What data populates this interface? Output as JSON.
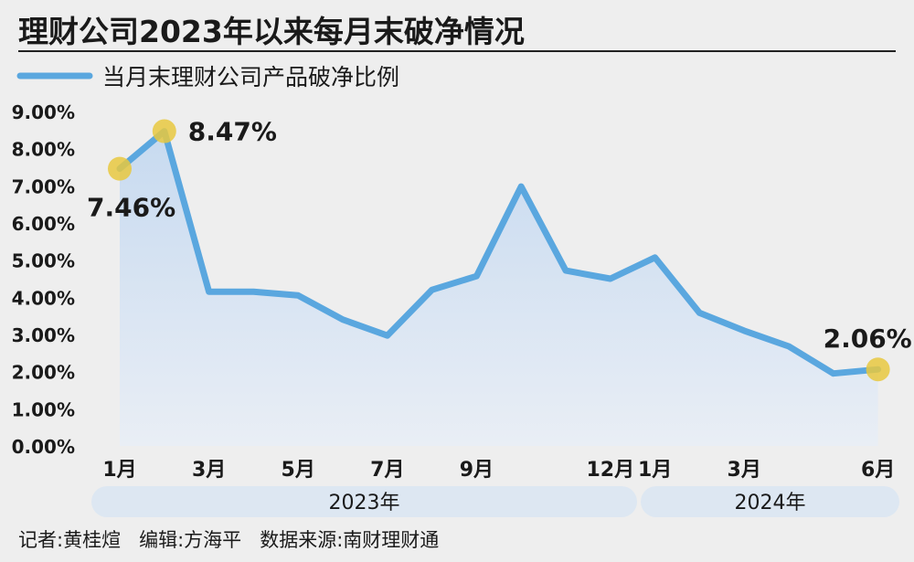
{
  "chart_data": {
    "type": "area",
    "title": "理财公司2023年以来每月末破净情况",
    "legend_label": "当月末理财公司产品破净比例",
    "series": [
      {
        "name": "当月末理财公司产品破净比例",
        "values": [
          7.46,
          8.47,
          4.15,
          4.15,
          4.05,
          3.4,
          2.97,
          4.2,
          4.57,
          6.98,
          4.72,
          4.5,
          5.07,
          3.58,
          3.1,
          2.68,
          1.95,
          2.06
        ],
        "color": "#5aa7df"
      }
    ],
    "months": [
      "2023-01",
      "2023-02",
      "2023-03",
      "2023-04",
      "2023-05",
      "2023-06",
      "2023-07",
      "2023-08",
      "2023-09",
      "2023-10",
      "2023-11",
      "2023-12",
      "2024-01",
      "2024-02",
      "2024-03",
      "2024-04",
      "2024-05",
      "2024-06"
    ],
    "x_tick_labels": [
      {
        "index": 0,
        "label": "1月"
      },
      {
        "index": 2,
        "label": "3月"
      },
      {
        "index": 4,
        "label": "5月"
      },
      {
        "index": 6,
        "label": "7月"
      },
      {
        "index": 8,
        "label": "9月"
      },
      {
        "index": 11,
        "label": "12月"
      },
      {
        "index": 12,
        "label": "1月"
      },
      {
        "index": 14,
        "label": "3月"
      },
      {
        "index": 17,
        "label": "6月"
      }
    ],
    "year_groups": [
      {
        "label": "2023年",
        "start_index": 0,
        "end_index": 11
      },
      {
        "label": "2024年",
        "start_index": 12,
        "end_index": 17
      }
    ],
    "y_ticks": [
      "0.00%",
      "1.00%",
      "2.00%",
      "3.00%",
      "4.00%",
      "5.00%",
      "6.00%",
      "7.00%",
      "8.00%",
      "9.00%"
    ],
    "ylim": [
      0,
      9
    ],
    "annotations": [
      {
        "index": 0,
        "text": "7.46%"
      },
      {
        "index": 1,
        "text": "8.47%"
      },
      {
        "index": 17,
        "text": "2.06%"
      }
    ],
    "highlight_color": "#e8c840",
    "grid": false
  },
  "footer": {
    "credits": "记者:黄桂煊   编辑:方海平   数据来源:南财理财通"
  }
}
